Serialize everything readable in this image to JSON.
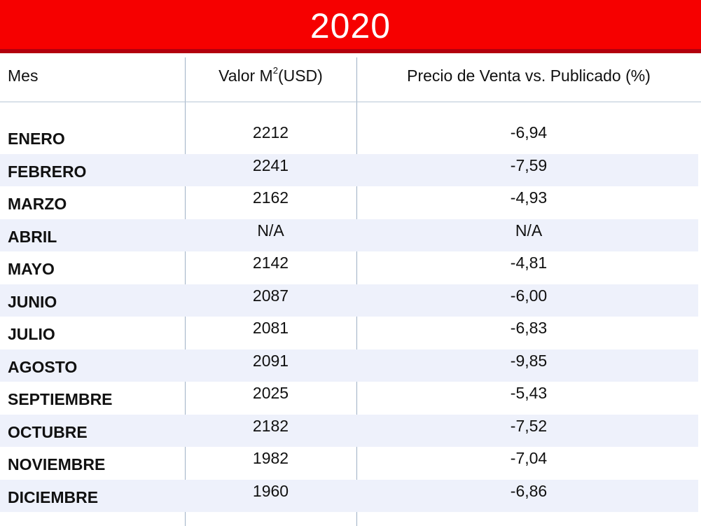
{
  "title": "2020",
  "columns": {
    "mes": "Mes",
    "valor_prefix": "Valor M",
    "valor_sup": "2",
    "valor_suffix": "(USD)",
    "precio": "Precio de Venta vs. Publicado (%)"
  },
  "rows": [
    {
      "mes": "ENERO",
      "valor": "2212",
      "precio": "-6,94"
    },
    {
      "mes": "FEBRERO",
      "valor": "2241",
      "precio": "-7,59"
    },
    {
      "mes": "MARZO",
      "valor": "2162",
      "precio": "-4,93"
    },
    {
      "mes": "ABRIL",
      "valor": "N/A",
      "precio": "N/A"
    },
    {
      "mes": "MAYO",
      "valor": "2142",
      "precio": "-4,81"
    },
    {
      "mes": "JUNIO",
      "valor": "2087",
      "precio": "-6,00"
    },
    {
      "mes": "JULIO",
      "valor": "2081",
      "precio": "-6,83"
    },
    {
      "mes": "AGOSTO",
      "valor": "2091",
      "precio": "-9,85"
    },
    {
      "mes": "SEPTIEMBRE",
      "valor": "2025",
      "precio": "-5,43"
    },
    {
      "mes": "OCTUBRE",
      "valor": "2182",
      "precio": "-7,52"
    },
    {
      "mes": "NOVIEMBRE",
      "valor": "1982",
      "precio": "-7,04"
    },
    {
      "mes": "DICIEMBRE",
      "valor": "1960",
      "precio": "-6,86"
    }
  ],
  "colors": {
    "title_background": "#f60000",
    "title_underline": "#b3000e",
    "row_shade": "#eef1fb",
    "divider": "#9fb1c6"
  }
}
